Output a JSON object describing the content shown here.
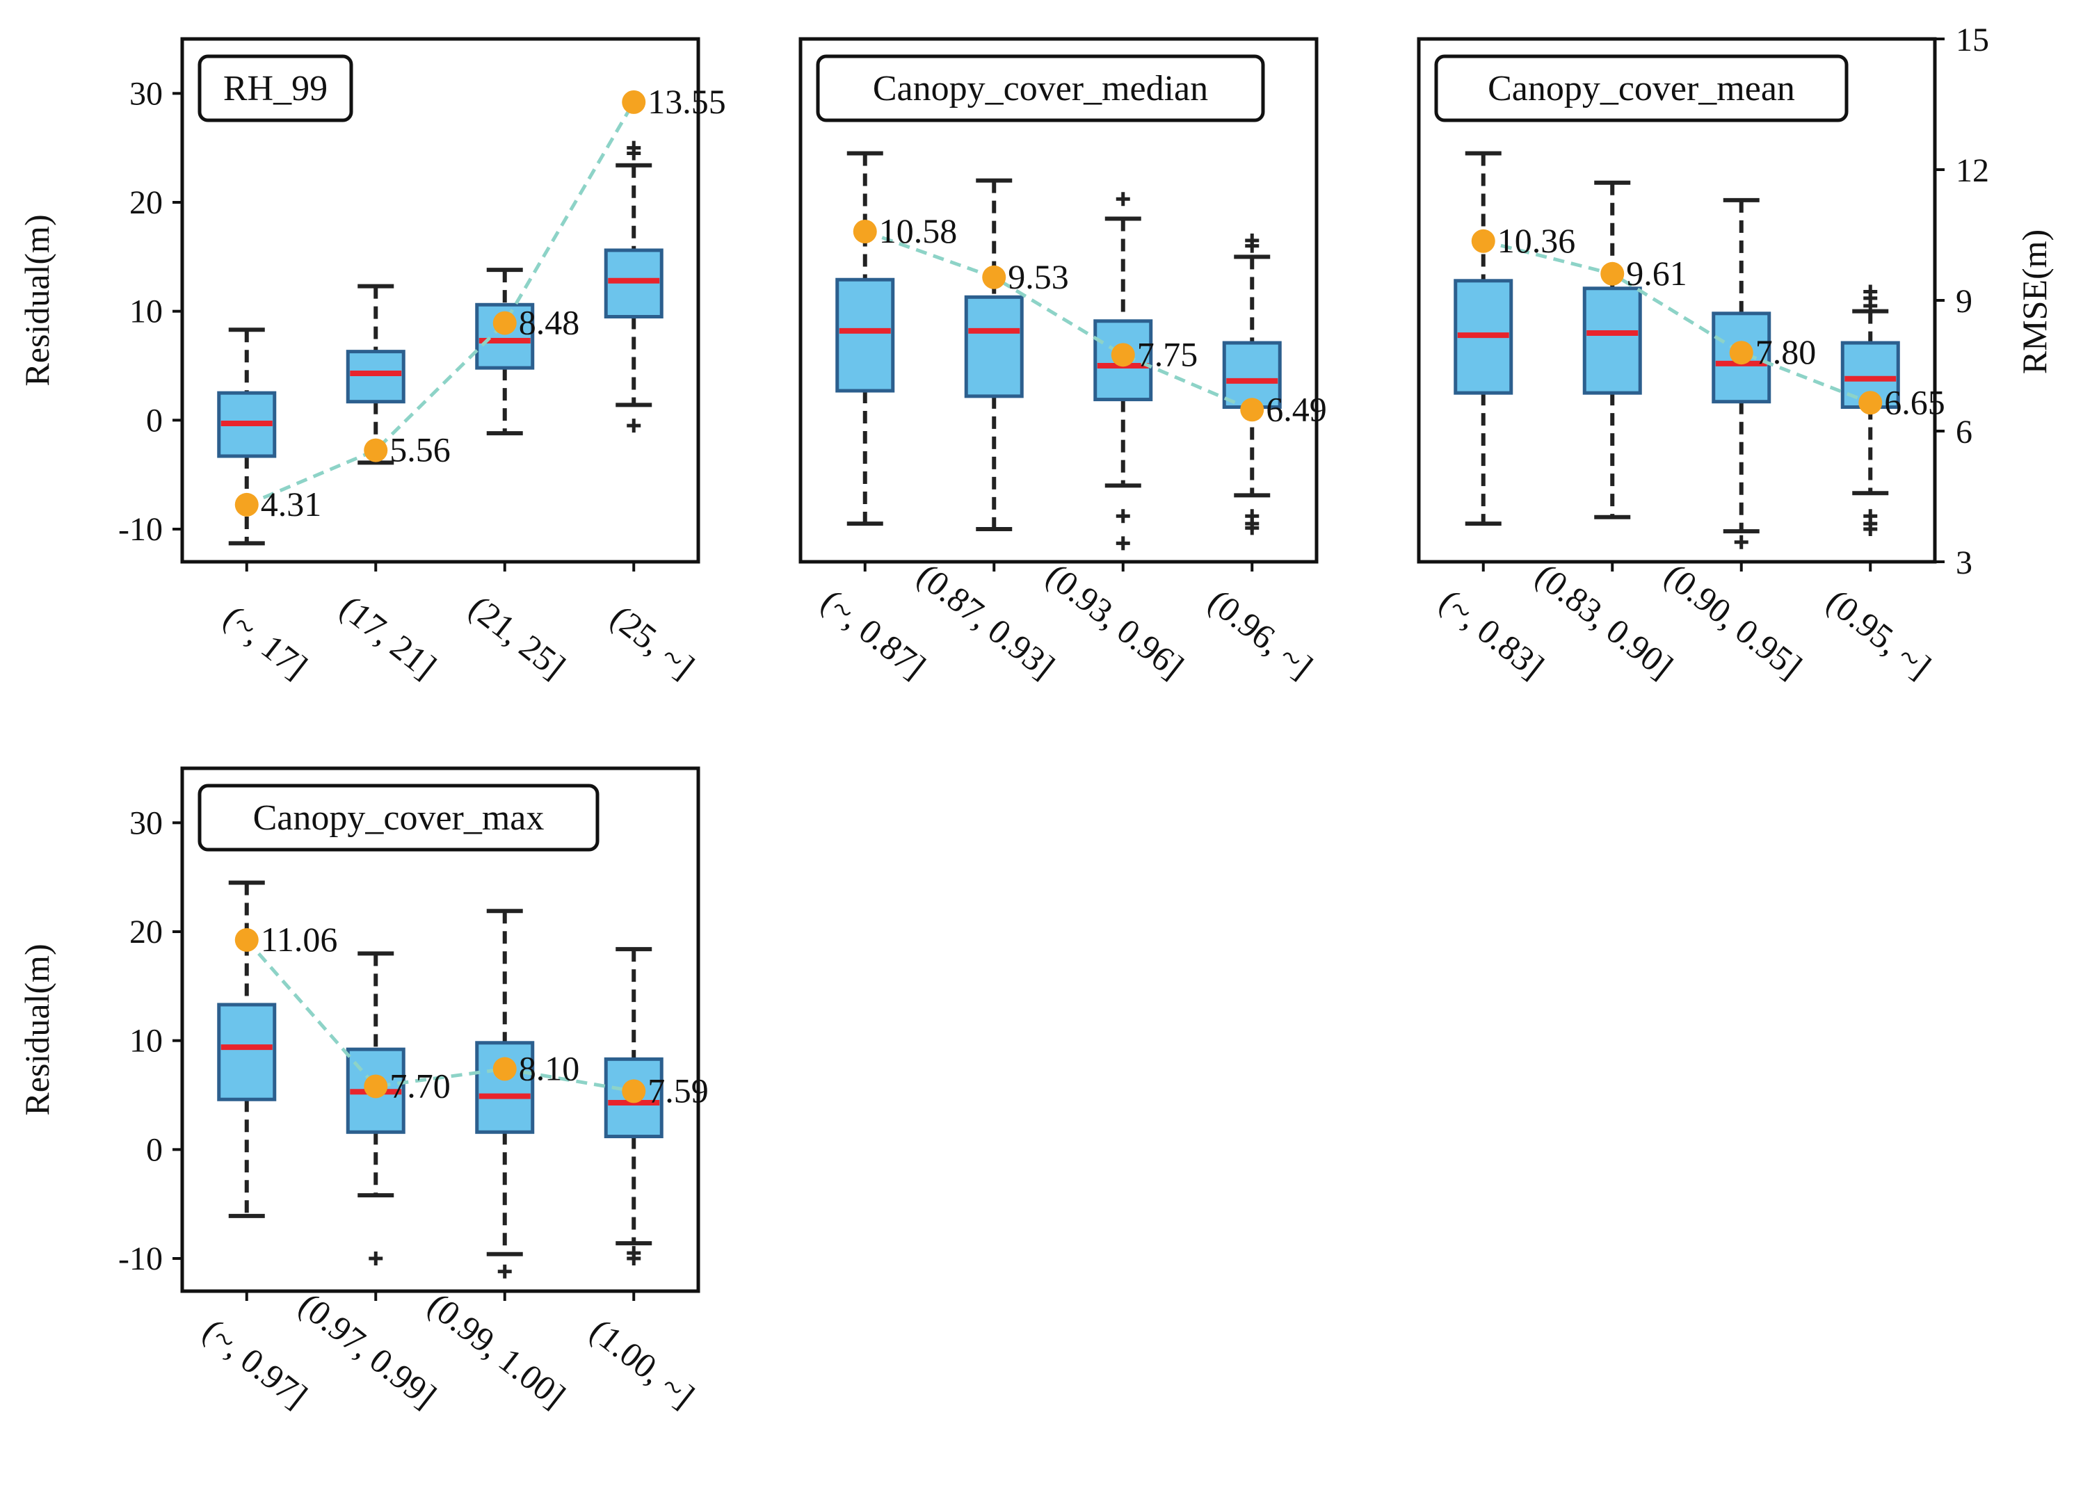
{
  "chart_data": [
    {
      "type": "box",
      "title": "RH_99",
      "ylabel": "Residual(m)",
      "ylim": [
        -13,
        35
      ],
      "yticks": [
        -10,
        0,
        10,
        20,
        30
      ],
      "ytick_labels": [
        "-10",
        "0",
        "10",
        "20",
        "30"
      ],
      "categories": [
        "(~, 17]",
        "(17, 21]",
        "(21, 25]",
        "(25, ~]"
      ],
      "boxes": [
        {
          "whisker_low": -11.3,
          "q1": -3.3,
          "median": -0.3,
          "q3": 2.5,
          "whisker_high": 8.3,
          "outliers": []
        },
        {
          "whisker_low": -3.9,
          "q1": 1.7,
          "median": 4.3,
          "q3": 6.3,
          "whisker_high": 12.3,
          "outliers": []
        },
        {
          "whisker_low": -1.2,
          "q1": 4.8,
          "median": 7.3,
          "q3": 10.6,
          "whisker_high": 13.8,
          "outliers": []
        },
        {
          "whisker_low": 1.4,
          "q1": 9.5,
          "median": 12.8,
          "q3": 15.6,
          "whisker_high": 23.4,
          "outliers": [
            -0.5,
            24.5,
            25.0
          ]
        }
      ],
      "rmse": [
        4.31,
        5.56,
        8.48,
        13.55
      ],
      "rmse_labels": [
        "4.31",
        "5.56",
        "8.48",
        "13.55"
      ]
    },
    {
      "type": "box",
      "title": "Canopy_cover_median",
      "ylim": [
        -13,
        35
      ],
      "categories": [
        "(~, 0.87]",
        "(0.87, 0.93]",
        "(0.93, 0.96]",
        "(0.96, ~]"
      ],
      "boxes": [
        {
          "whisker_low": -9.5,
          "q1": 2.7,
          "median": 8.2,
          "q3": 12.9,
          "whisker_high": 24.5,
          "outliers": []
        },
        {
          "whisker_low": -10.0,
          "q1": 2.2,
          "median": 8.2,
          "q3": 11.3,
          "whisker_high": 22.0,
          "outliers": []
        },
        {
          "whisker_low": -6.0,
          "q1": 1.9,
          "median": 5.0,
          "q3": 9.1,
          "whisker_high": 18.5,
          "outliers": [
            -8.8,
            -11.3,
            20.3
          ]
        },
        {
          "whisker_low": -6.9,
          "q1": 1.2,
          "median": 3.6,
          "q3": 7.1,
          "whisker_high": 15.0,
          "outliers": [
            -8.8,
            -9.5,
            -9.9,
            16.0,
            16.5
          ]
        }
      ],
      "rmse": [
        10.58,
        9.53,
        7.75,
        6.49
      ],
      "rmse_labels": [
        "10.58",
        "9.53",
        "7.75",
        "6.49"
      ]
    },
    {
      "type": "box",
      "title": "Canopy_cover_mean",
      "ylim": [
        -13,
        35
      ],
      "y2label": "RMSE(m)",
      "y2lim": [
        3,
        15
      ],
      "y2ticks": [
        3,
        6,
        9,
        12,
        15
      ],
      "y2tick_labels": [
        "3",
        "6",
        "9",
        "12",
        "15"
      ],
      "categories": [
        "(~, 0.83]",
        "(0.83, 0.90]",
        "(0.90, 0.95]",
        "(0.95, ~]"
      ],
      "boxes": [
        {
          "whisker_low": -9.5,
          "q1": 2.5,
          "median": 7.8,
          "q3": 12.8,
          "whisker_high": 24.5,
          "outliers": []
        },
        {
          "whisker_low": -8.9,
          "q1": 2.5,
          "median": 8.0,
          "q3": 12.1,
          "whisker_high": 21.8,
          "outliers": []
        },
        {
          "whisker_low": -10.2,
          "q1": 1.7,
          "median": 5.2,
          "q3": 9.8,
          "whisker_high": 20.2,
          "outliers": [
            -11.2
          ]
        },
        {
          "whisker_low": -6.7,
          "q1": 1.2,
          "median": 3.8,
          "q3": 7.1,
          "whisker_high": 10.0,
          "outliers": [
            -8.8,
            -9.5,
            -10.0,
            10.5,
            11.2,
            11.8
          ]
        }
      ],
      "rmse": [
        10.36,
        9.61,
        7.8,
        6.65
      ],
      "rmse_labels": [
        "10.36",
        "9.61",
        "7.80",
        "6.65"
      ]
    },
    {
      "type": "box",
      "title": "Canopy_cover_max",
      "ylabel": "Residual(m)",
      "ylim": [
        -13,
        35
      ],
      "yticks": [
        -10,
        0,
        10,
        20,
        30
      ],
      "ytick_labels": [
        "-10",
        "0",
        "10",
        "20",
        "30"
      ],
      "categories": [
        "(~, 0.97]",
        "(0.97, 0.99]",
        "(0.99, 1.00]",
        "(1.00, ~]"
      ],
      "boxes": [
        {
          "whisker_low": -6.1,
          "q1": 4.6,
          "median": 9.4,
          "q3": 13.3,
          "whisker_high": 24.5,
          "outliers": []
        },
        {
          "whisker_low": -4.2,
          "q1": 1.6,
          "median": 5.3,
          "q3": 9.2,
          "whisker_high": 18.0,
          "outliers": [
            -10.0
          ]
        },
        {
          "whisker_low": -9.6,
          "q1": 1.6,
          "median": 4.9,
          "q3": 9.8,
          "whisker_high": 21.9,
          "outliers": [
            -11.2
          ]
        },
        {
          "whisker_low": -8.6,
          "q1": 1.2,
          "median": 4.3,
          "q3": 8.3,
          "whisker_high": 18.4,
          "outliers": [
            -9.5,
            -10.0
          ]
        }
      ],
      "rmse": [
        11.06,
        7.7,
        8.1,
        7.59
      ],
      "rmse_labels": [
        "11.06",
        "7.70",
        "8.10",
        "7.59"
      ],
      "rmse_ylim": [
        3,
        15
      ]
    }
  ],
  "colors": {
    "box_fill": "#6cc4ec",
    "box_edge": "#2c5f8e",
    "median": "#e8242c",
    "whisker": "#222222",
    "rmse_line": "#8dd3c7",
    "rmse_marker": "#f5a320",
    "frame": "#111111"
  }
}
